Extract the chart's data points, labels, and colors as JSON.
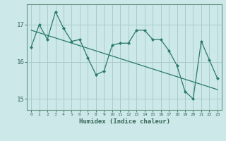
{
  "xlabel": "Humidex (Indice chaleur)",
  "bg_color": "#cce8e8",
  "grid_color": "#aacccc",
  "line_color": "#2a7a6a",
  "x_values": [
    0,
    1,
    2,
    3,
    4,
    5,
    6,
    7,
    8,
    9,
    10,
    11,
    12,
    13,
    14,
    15,
    16,
    17,
    18,
    19,
    20,
    21,
    22,
    23
  ],
  "y_values": [
    16.4,
    17.0,
    16.6,
    17.35,
    16.9,
    16.55,
    16.6,
    16.1,
    15.65,
    15.75,
    16.45,
    16.5,
    16.5,
    16.85,
    16.85,
    16.6,
    16.6,
    16.3,
    15.9,
    15.2,
    15.0,
    16.55,
    16.05,
    15.55
  ],
  "trend_x": [
    0,
    23
  ],
  "trend_y": [
    16.85,
    15.25
  ],
  "ylim": [
    14.7,
    17.55
  ],
  "yticks": [
    15,
    16,
    17
  ],
  "xticks": [
    0,
    1,
    2,
    3,
    4,
    5,
    6,
    7,
    8,
    9,
    10,
    11,
    12,
    13,
    14,
    15,
    16,
    17,
    18,
    19,
    20,
    21,
    22,
    23
  ],
  "tick_color": "#336655",
  "xlabel_color": "#336655",
  "spine_color": "#669988"
}
